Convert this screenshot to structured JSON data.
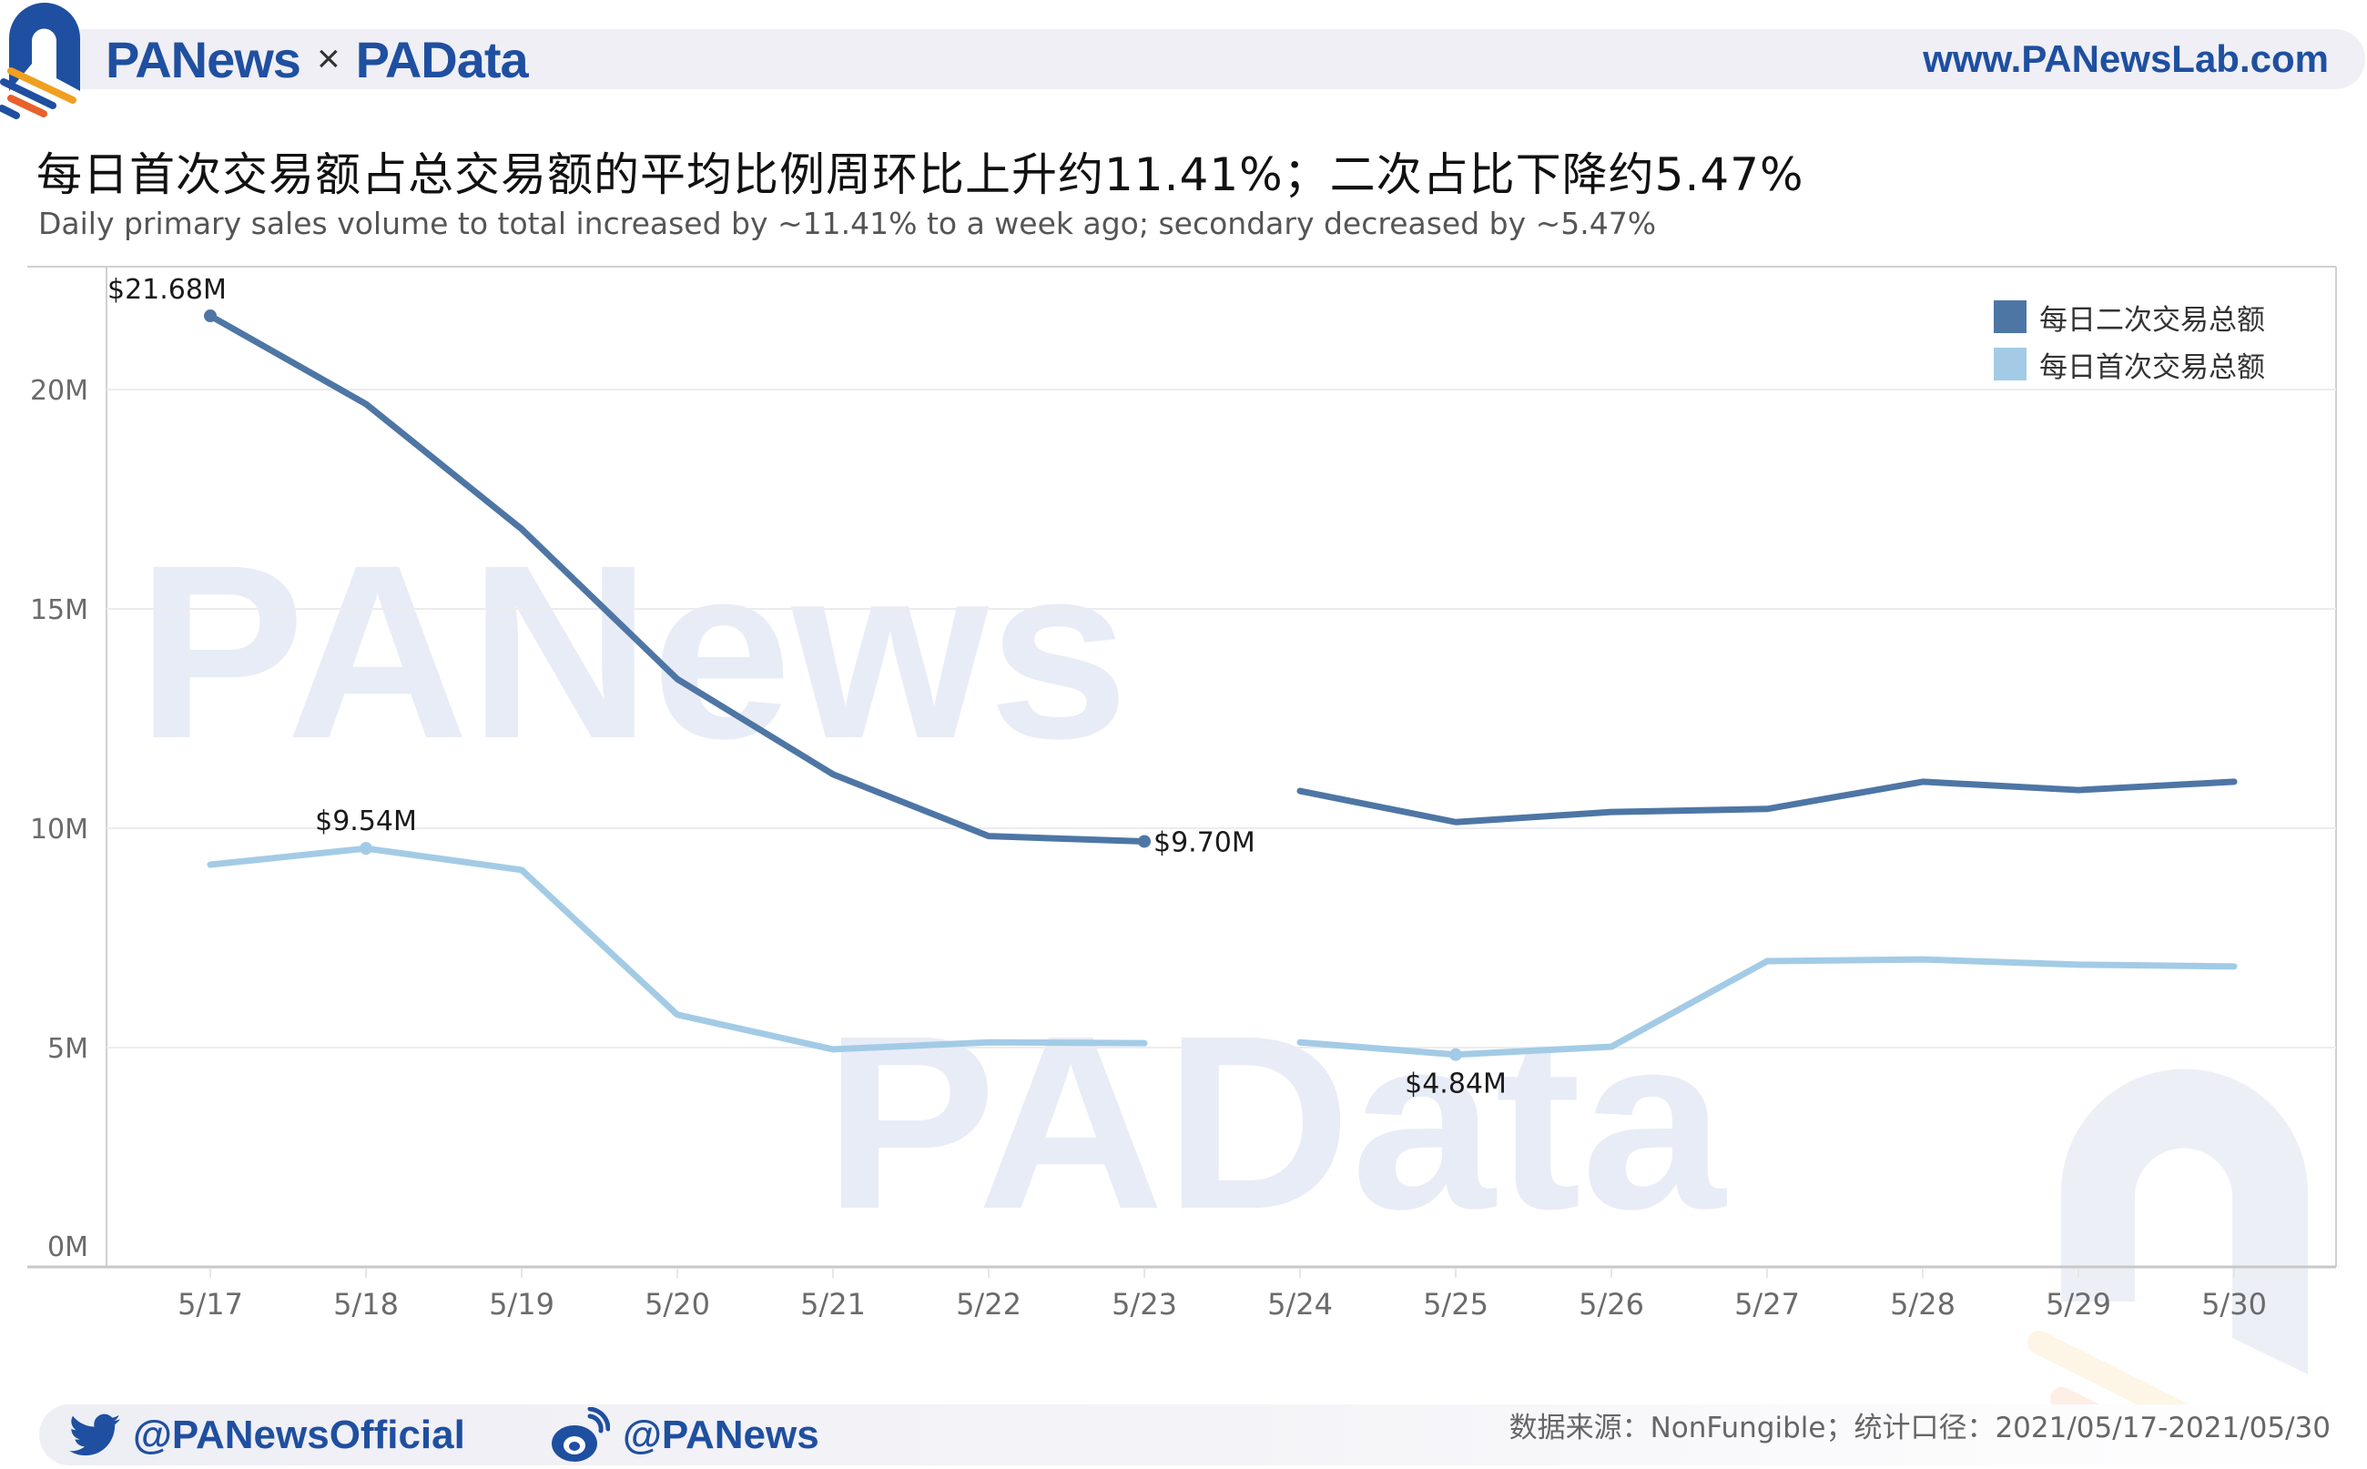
{
  "header": {
    "brand_left": "PANews",
    "brand_sep": "×",
    "brand_right": "PAData",
    "url": "www.PANewsLab.com"
  },
  "title": "每日首次交易额占总交易额的平均比例周环比上升约11.41%；二次占比下降约5.47%",
  "subtitle": "Daily primary sales volume to total increased by ~11.41% to a week ago; secondary decreased by ~5.47%",
  "legend": [
    {
      "label": "每日二次交易总额",
      "color": "#4e76a5"
    },
    {
      "label": "每日首次交易总额",
      "color": "#a3cbe6"
    }
  ],
  "watermarks": [
    "PANews",
    "PAData"
  ],
  "footer": {
    "twitter_handle": "@PANewsOfficial",
    "weibo_handle": "@PANews",
    "source": "数据来源：NonFungible；统计口径：2021/05/17-2021/05/30"
  },
  "colors": {
    "brand_blue": "#1f4fa0",
    "secondary_line": "#4e76a5",
    "primary_line": "#a3cbe6",
    "gridline": "#ececf0",
    "watermark": "#e8ecf6"
  },
  "chart_data": {
    "type": "line",
    "title": "每日首次交易额占总交易额的平均比例周环比上升约11.41%；二次占比下降约5.47%",
    "subtitle": "Daily primary sales volume to total increased by ~11.41% to a week ago; secondary decreased by ~5.47%",
    "xlabel": "",
    "ylabel": "",
    "categories": [
      "5/17",
      "5/18",
      "5/19",
      "5/20",
      "5/21",
      "5/22",
      "5/23",
      "5/24",
      "5/25",
      "5/26",
      "5/27",
      "5/28",
      "5/29",
      "5/30"
    ],
    "yticks": [
      "0M",
      "5M",
      "10M",
      "15M",
      "20M"
    ],
    "ylim": [
      0,
      22.5
    ],
    "grid": true,
    "legend_position": "top-right",
    "series": [
      {
        "name": "每日二次交易总额",
        "color": "#4e76a5",
        "values": [
          21.68,
          19.67,
          16.82,
          13.4,
          11.23,
          9.82,
          9.7,
          10.85,
          10.14,
          10.37,
          10.44,
          11.06,
          10.87,
          11.06
        ]
      },
      {
        "name": "每日首次交易总额",
        "color": "#a3cbe6",
        "values": [
          9.17,
          9.54,
          9.05,
          5.75,
          4.96,
          5.12,
          5.1,
          5.12,
          4.84,
          5.02,
          6.97,
          7.01,
          6.89,
          6.85
        ]
      }
    ],
    "segment_break_after_index": 6,
    "annotations": [
      {
        "series": 0,
        "index": 0,
        "text": "$21.68M"
      },
      {
        "series": 1,
        "index": 1,
        "text": "$9.54M"
      },
      {
        "series": 0,
        "index": 6,
        "text": "$9.70M"
      },
      {
        "series": 1,
        "index": 8,
        "text": "$4.84M"
      }
    ],
    "unit": "USD millions"
  }
}
